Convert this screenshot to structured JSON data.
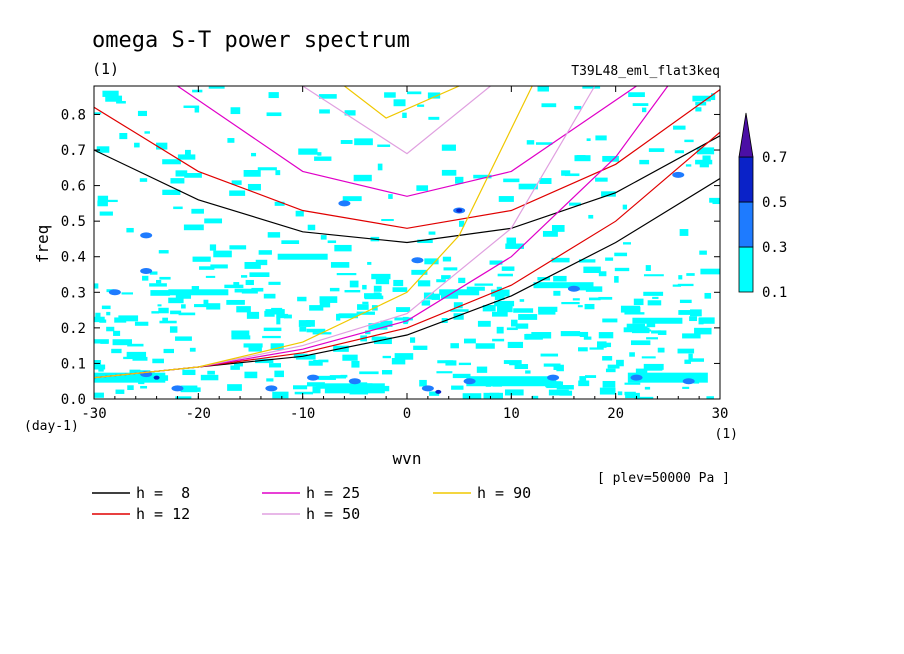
{
  "chart_data": {
    "type": "heatmap",
    "title": "omega S-T power spectrum",
    "subtitle": "(1)",
    "experiment": "T39L48_eml_flat3keq",
    "xlabel": "wvn",
    "x_unit": "(1)",
    "ylabel": "freq",
    "y_unit": "(day-1)",
    "note": "[ plev=50000 Pa ]",
    "xlim": [
      -30,
      30
    ],
    "ylim": [
      0.0,
      0.88
    ],
    "x_ticks": [
      -30,
      -20,
      -10,
      0,
      10,
      20,
      30
    ],
    "x_tick_labels": [
      "-30",
      "-20",
      "-10",
      "0",
      "10",
      "20",
      "30"
    ],
    "y_ticks": [
      0.0,
      0.1,
      0.2,
      0.3,
      0.4,
      0.5,
      0.6,
      0.7,
      0.8
    ],
    "y_tick_labels": [
      "0.0",
      "0.1",
      "0.2",
      "0.3",
      "0.4",
      "0.5",
      "0.6",
      "0.7",
      "0.8"
    ],
    "color_levels": [
      0.1,
      0.3,
      0.5,
      0.7
    ],
    "color_level_labels": [
      "0.1",
      "0.3",
      "0.5",
      "0.7"
    ],
    "color_bins": [
      "#00ffff",
      "#1e7bff",
      "#0a22c8",
      "#4b0fa5"
    ],
    "dispersion_curves": [
      {
        "name": "h =  8",
        "label": "h =  8",
        "h": 8,
        "color": "#000000",
        "meridional_modes": [
          {
            "x": [
              -30,
              -20,
              -10,
              0,
              10,
              20,
              30
            ],
            "y": [
              0.7,
              0.56,
              0.47,
              0.44,
              0.48,
              0.58,
              0.74
            ]
          },
          {
            "x": [
              -30,
              -20,
              -10,
              0,
              10,
              20,
              30
            ],
            "y": [
              0.06,
              0.09,
              0.12,
              0.18,
              0.29,
              0.44,
              0.62
            ]
          }
        ]
      },
      {
        "name": "h = 12",
        "label": "h = 12",
        "h": 12,
        "color": "#e00000",
        "meridional_modes": [
          {
            "x": [
              -30,
              -20,
              -10,
              0,
              10,
              20,
              30
            ],
            "y": [
              0.82,
              0.64,
              0.53,
              0.48,
              0.53,
              0.66,
              0.87
            ]
          },
          {
            "x": [
              -30,
              -20,
              -10,
              0,
              10,
              20,
              30
            ],
            "y": [
              0.06,
              0.09,
              0.13,
              0.2,
              0.32,
              0.5,
              0.75
            ]
          }
        ]
      },
      {
        "name": "h = 25",
        "label": "h = 25",
        "h": 25,
        "color": "#e000c8",
        "meridional_modes": [
          {
            "x": [
              -22,
              -10,
              0,
              10,
              22
            ],
            "y": [
              0.88,
              0.64,
              0.57,
              0.64,
              0.88
            ]
          },
          {
            "x": [
              -30,
              -20,
              -10,
              0,
              10,
              20,
              25
            ],
            "y": [
              0.06,
              0.09,
              0.14,
              0.22,
              0.4,
              0.68,
              0.88
            ]
          }
        ]
      },
      {
        "name": "h = 50",
        "label": "h = 50",
        "h": 50,
        "color": "#e0a0e0",
        "meridional_modes": [
          {
            "x": [
              -10,
              0,
              8
            ],
            "y": [
              0.88,
              0.69,
              0.88
            ]
          },
          {
            "x": [
              -30,
              -20,
              -10,
              0,
              10,
              18
            ],
            "y": [
              0.06,
              0.09,
              0.15,
              0.24,
              0.48,
              0.88
            ]
          }
        ]
      },
      {
        "name": "h = 90",
        "label": "h = 90",
        "h": 90,
        "color": "#f0c800",
        "meridional_modes": [
          {
            "x": [
              -6,
              -2,
              5
            ],
            "y": [
              0.88,
              0.79,
              0.88
            ]
          },
          {
            "x": [
              -30,
              -20,
              -10,
              0,
              5,
              12
            ],
            "y": [
              0.06,
              0.09,
              0.16,
              0.3,
              0.46,
              0.88
            ]
          }
        ]
      }
    ]
  }
}
